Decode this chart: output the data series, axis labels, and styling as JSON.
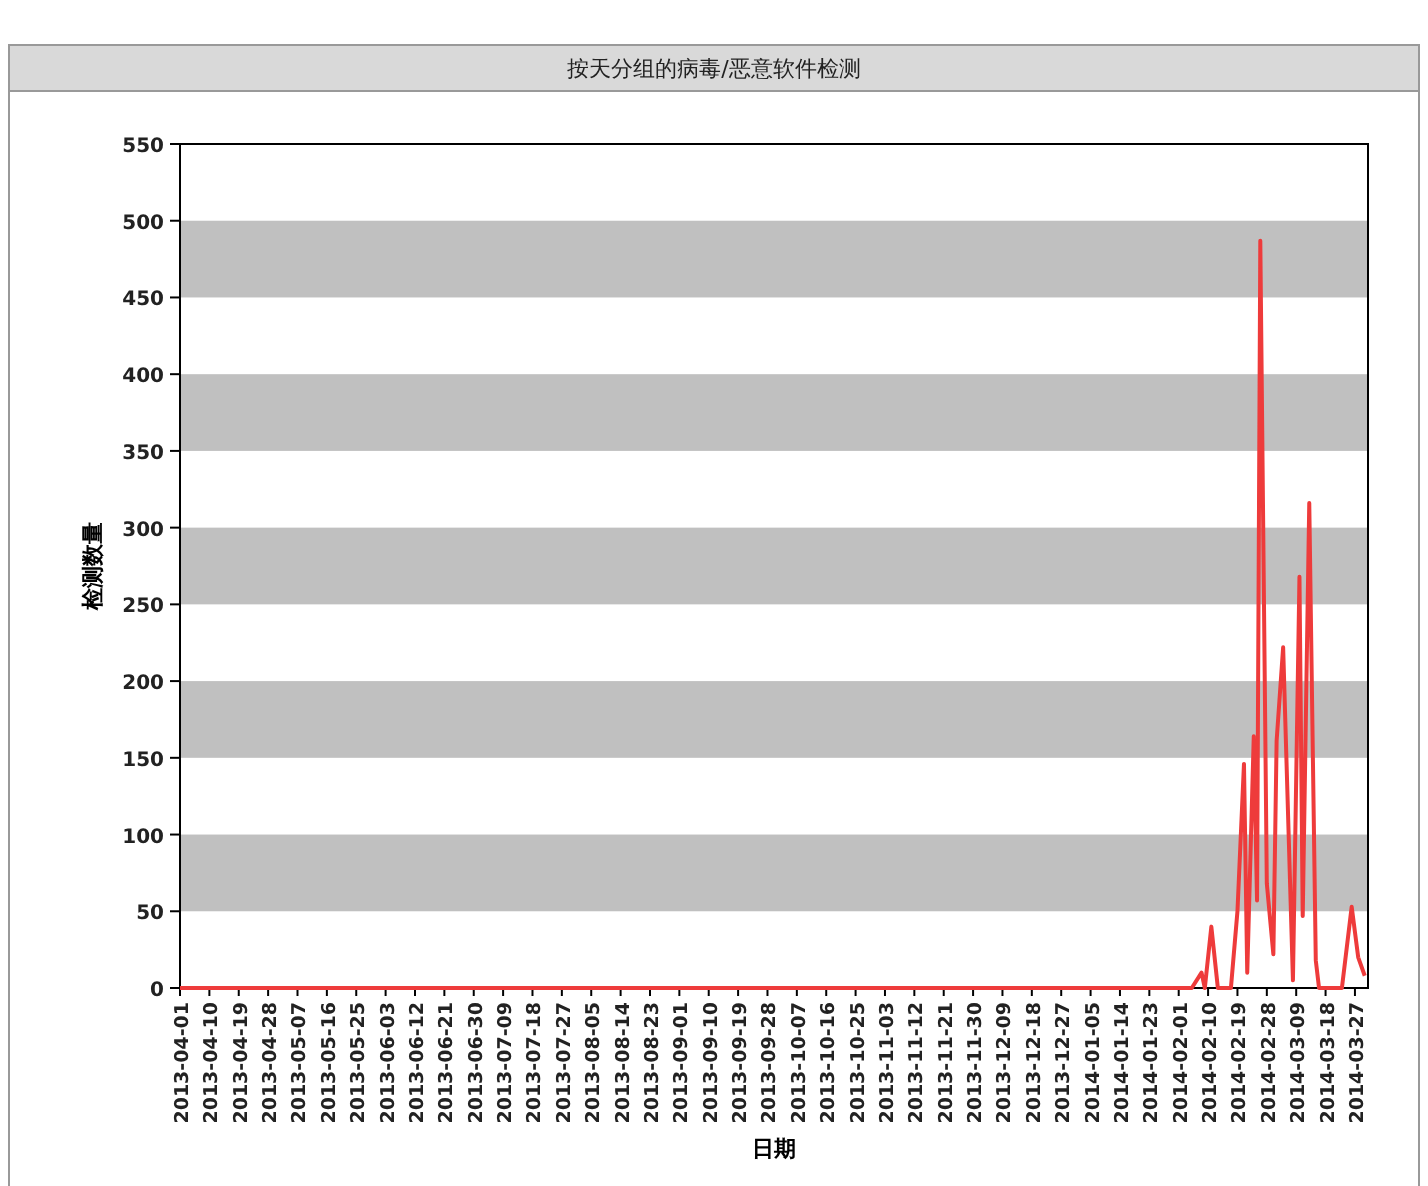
{
  "chart_data": {
    "type": "line",
    "title": "按天分组的病毒/恶意软件检测",
    "xlabel": "日期",
    "ylabel": "检测数量",
    "x": [
      "2013-04-01",
      "2014-02-05",
      "2014-02-08",
      "2014-02-09",
      "2014-02-11",
      "2014-02-13",
      "2014-02-17",
      "2014-02-19",
      "2014-02-21",
      "2014-02-22",
      "2014-02-24",
      "2014-02-25",
      "2014-02-26",
      "2014-02-28",
      "2014-03-02",
      "2014-03-03",
      "2014-03-05",
      "2014-03-08",
      "2014-03-10",
      "2014-03-11",
      "2014-03-13",
      "2014-03-15",
      "2014-03-16",
      "2014-03-23",
      "2014-03-26",
      "2014-03-28",
      "2014-03-30"
    ],
    "values": [
      0,
      0,
      10,
      0,
      40,
      0,
      0,
      50,
      146,
      10,
      164,
      57,
      487,
      68,
      22,
      161,
      222,
      5,
      268,
      47,
      316,
      18,
      0,
      0,
      53,
      20,
      8
    ],
    "color": "#ee3b3b",
    "marker": "none",
    "line_style": "solid",
    "bands": [
      {
        "axis": "y",
        "from": 50,
        "to": 100,
        "color": "#c0c0c0"
      },
      {
        "axis": "y",
        "from": 150,
        "to": 200,
        "color": "#c0c0c0"
      },
      {
        "axis": "y",
        "from": 250,
        "to": 300,
        "color": "#c0c0c0"
      },
      {
        "axis": "y",
        "from": 350,
        "to": 400,
        "color": "#c0c0c0"
      },
      {
        "axis": "y",
        "from": 450,
        "to": 500,
        "color": "#c0c0c0"
      }
    ],
    "xlim": [
      "2013-04-01",
      "2014-03-31"
    ],
    "xticks": [
      "2013-04-01",
      "2013-04-10",
      "2013-04-19",
      "2013-04-28",
      "2013-05-07",
      "2013-05-16",
      "2013-05-25",
      "2013-06-03",
      "2013-06-12",
      "2013-06-21",
      "2013-06-30",
      "2013-07-09",
      "2013-07-18",
      "2013-07-27",
      "2013-08-05",
      "2013-08-14",
      "2013-08-23",
      "2013-09-01",
      "2013-09-10",
      "2013-09-19",
      "2013-09-28",
      "2013-10-07",
      "2013-10-16",
      "2013-10-25",
      "2013-11-03",
      "2013-11-12",
      "2013-11-21",
      "2013-11-30",
      "2013-12-09",
      "2013-12-18",
      "2013-12-27",
      "2014-01-05",
      "2014-01-14",
      "2014-01-23",
      "2014-02-01",
      "2014-02-10",
      "2014-02-19",
      "2014-02-28",
      "2014-03-09",
      "2014-03-18",
      "2014-03-27"
    ],
    "ylim": [
      0,
      550
    ],
    "yticks": [
      0,
      50,
      100,
      150,
      200,
      250,
      300,
      350,
      400,
      450,
      500,
      550
    ]
  }
}
